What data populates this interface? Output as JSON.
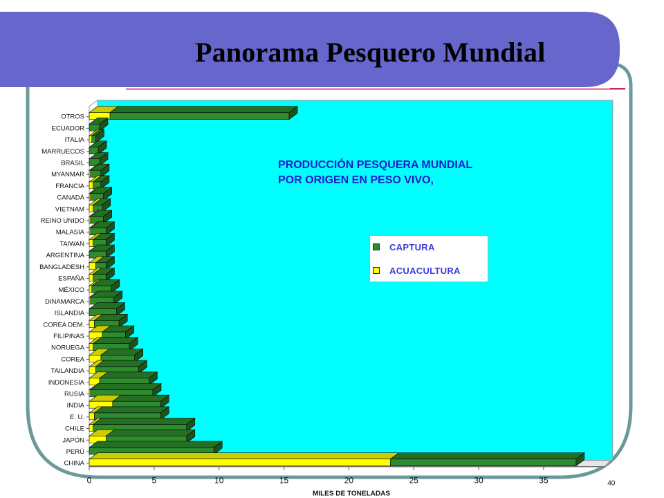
{
  "slide": {
    "title": "Panorama Pesquero Mundial",
    "colors": {
      "header_band": "#6666cc",
      "frame": "#6b9a98",
      "rule": "#cc2255",
      "plot_bg": "#00ffff"
    }
  },
  "chart_heading": {
    "line1": "PRODUCCIÓN PESQUERA MUNDIAL",
    "line2": "POR ORIGEN EN PESO VIVO,"
  },
  "legend": {
    "items": [
      {
        "label": "CAPTURA",
        "color": "#2e8b2e"
      },
      {
        "label": "ACUACULTURA",
        "color": "#ffff00"
      }
    ],
    "placement": "right-middle"
  },
  "chart_data": {
    "type": "bar",
    "orientation": "horizontal",
    "stacked": true,
    "three_d": true,
    "categories": [
      "CHINA",
      "PERÚ",
      "JAPÓN",
      "CHILE",
      "E. U.",
      "INDIA",
      "RUSIA",
      "INDONESIA",
      "TAILANDIA",
      "COREA",
      "NORUEGA",
      "FILIPINAS",
      "COREA DEM.",
      "ISLANDIA",
      "DINAMARCA",
      "MÉXICO",
      "ESPAÑA",
      "BANGLADESH",
      "ARGENTINA",
      "TAIWAN",
      "MALASIA",
      "REINO UNIDO",
      "VIETNAM",
      "CANADÁ",
      "FRANCIA",
      "MYANMAR",
      "BRASIL",
      "MARRUECOS",
      "ITALIA",
      "ECUADOR",
      "OTROS"
    ],
    "series": [
      {
        "name": "ACUACULTURA",
        "color": "#ffff00",
        "values": [
          23.2,
          0.0,
          1.3,
          0.3,
          0.4,
          1.8,
          0.1,
          0.8,
          0.5,
          0.9,
          0.3,
          1.0,
          0.4,
          0.0,
          0.1,
          0.2,
          0.3,
          0.5,
          0.0,
          0.3,
          0.1,
          0.1,
          0.3,
          0.1,
          0.3,
          0.1,
          0.0,
          0.0,
          0.2,
          0.0,
          1.6
        ]
      },
      {
        "name": "CAPTURA",
        "color": "#2e8b2e",
        "values": [
          14.3,
          9.6,
          6.2,
          7.2,
          5.1,
          3.7,
          4.8,
          3.8,
          3.3,
          2.6,
          2.8,
          1.8,
          1.9,
          2.1,
          1.8,
          1.5,
          1.0,
          0.8,
          1.3,
          1.0,
          1.2,
          1.0,
          0.7,
          1.0,
          0.6,
          0.8,
          0.8,
          0.7,
          0.3,
          0.8,
          13.8
        ]
      }
    ],
    "xlabel": "MILES DE TONELADAS",
    "xticks": [
      "0",
      "5",
      "10",
      "15",
      "20",
      "25",
      "30",
      "35",
      "40"
    ],
    "xlim": [
      0,
      40
    ],
    "grid": false
  }
}
